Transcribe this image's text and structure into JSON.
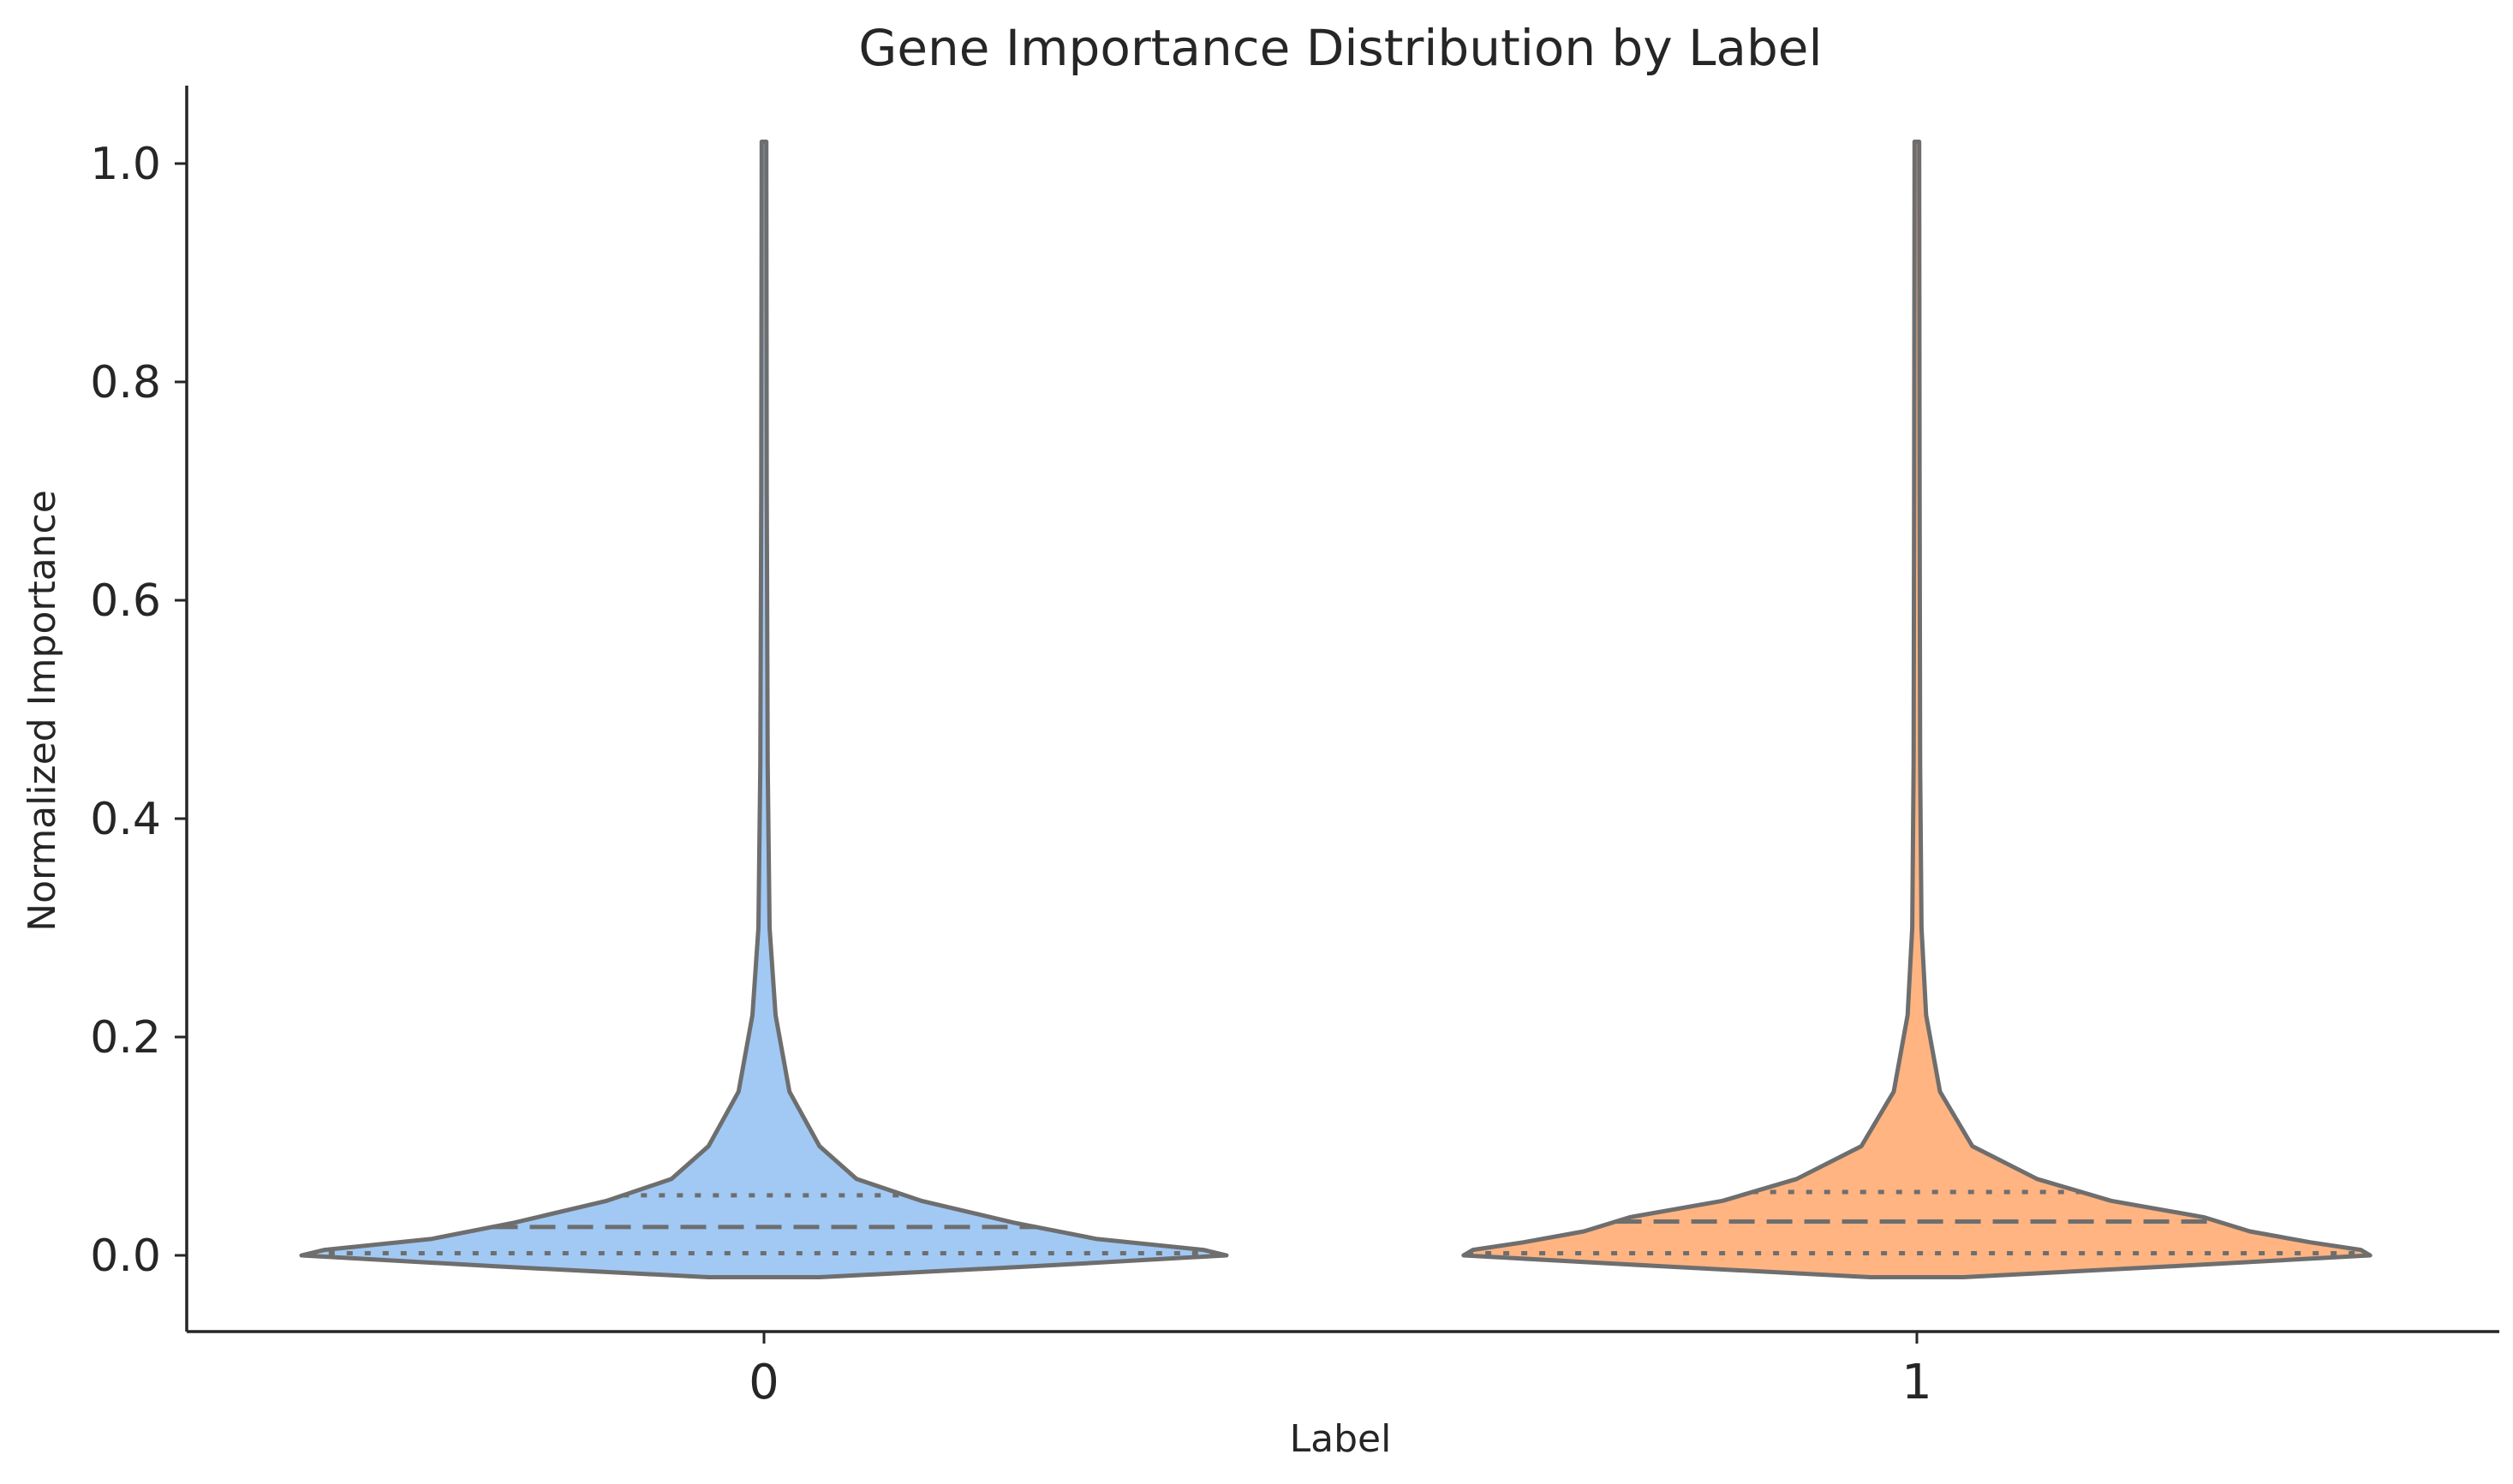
{
  "chart_data": {
    "type": "violin",
    "title": "Gene Importance Distribution by Label",
    "xlabel": "Label",
    "ylabel": "Normalized Importance",
    "categories": [
      "0",
      "1"
    ],
    "ylim": [
      -0.07,
      1.07
    ],
    "yticks": [
      0.0,
      0.2,
      0.4,
      0.6,
      0.8,
      1.0
    ],
    "ytick_labels": [
      "0.0",
      "0.2",
      "0.4",
      "0.6",
      "0.8",
      "1.0"
    ],
    "grid": false,
    "legend": "none",
    "inner": "quartile",
    "series": [
      {
        "category": "0",
        "color": "#a1c9f4",
        "q1": 0.002,
        "median": 0.026,
        "q3": 0.055,
        "density": [
          {
            "y": -0.02,
            "w": 0.12
          },
          {
            "y": -0.01,
            "w": 0.58
          },
          {
            "y": 0.0,
            "w": 1.0
          },
          {
            "y": 0.005,
            "w": 0.95
          },
          {
            "y": 0.015,
            "w": 0.72
          },
          {
            "y": 0.03,
            "w": 0.54
          },
          {
            "y": 0.05,
            "w": 0.34
          },
          {
            "y": 0.07,
            "w": 0.2
          },
          {
            "y": 0.1,
            "w": 0.12
          },
          {
            "y": 0.15,
            "w": 0.055
          },
          {
            "y": 0.22,
            "w": 0.025
          },
          {
            "y": 0.3,
            "w": 0.012
          },
          {
            "y": 0.45,
            "w": 0.008
          },
          {
            "y": 0.7,
            "w": 0.006
          },
          {
            "y": 1.0,
            "w": 0.005
          },
          {
            "y": 1.02,
            "w": 0.005
          }
        ]
      },
      {
        "category": "1",
        "color": "#ffb482",
        "q1": 0.002,
        "median": 0.031,
        "q3": 0.058,
        "density": [
          {
            "y": -0.02,
            "w": 0.1
          },
          {
            "y": -0.01,
            "w": 0.55
          },
          {
            "y": 0.0,
            "w": 0.98
          },
          {
            "y": 0.005,
            "w": 0.96
          },
          {
            "y": 0.012,
            "w": 0.85
          },
          {
            "y": 0.022,
            "w": 0.72
          },
          {
            "y": 0.035,
            "w": 0.62
          },
          {
            "y": 0.05,
            "w": 0.42
          },
          {
            "y": 0.07,
            "w": 0.26
          },
          {
            "y": 0.1,
            "w": 0.12
          },
          {
            "y": 0.15,
            "w": 0.05
          },
          {
            "y": 0.22,
            "w": 0.02
          },
          {
            "y": 0.3,
            "w": 0.01
          },
          {
            "y": 0.45,
            "w": 0.007
          },
          {
            "y": 0.7,
            "w": 0.006
          },
          {
            "y": 1.0,
            "w": 0.005
          },
          {
            "y": 1.02,
            "w": 0.005
          }
        ]
      }
    ]
  }
}
